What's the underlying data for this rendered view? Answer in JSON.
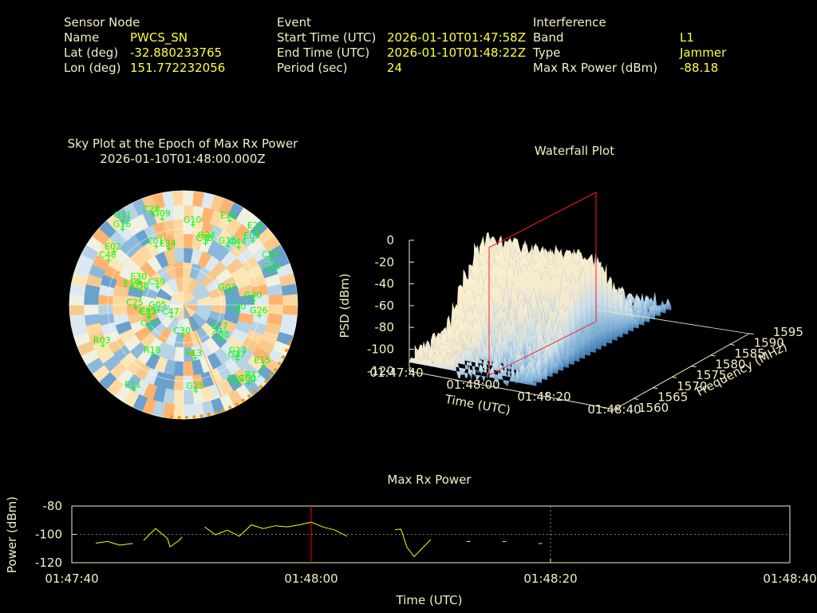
{
  "header": {
    "sensor": {
      "heading": "Sensor Node",
      "name_label": "Name",
      "name": "PWCS_SN",
      "lat_label": "Lat (deg)",
      "lat": "-32.880233765",
      "lon_label": "Lon (deg)",
      "lon": "151.772232056"
    },
    "event": {
      "heading": "Event",
      "start_label": "Start Time (UTC)",
      "start": "2026-01-10T01:47:58Z",
      "end_label": "End Time (UTC)",
      "end": "2026-01-10T01:48:22Z",
      "period_label": "Period (sec)",
      "period": "24"
    },
    "interference": {
      "heading": "Interference",
      "band_label": "Band",
      "band": "L1",
      "type_label": "Type",
      "type": "Jammer",
      "power_label": "Max Rx Power (dBm)",
      "power": "-88.18"
    }
  },
  "chart_data": [
    {
      "type": "scatter",
      "name": "sky",
      "title": "Sky Plot at the Epoch of Max Rx Power",
      "subtitle": "2026-01-10T01:48:00.000Z",
      "satellites": [
        "C30",
        "E30",
        "C47",
        "E03",
        "E24",
        "G18",
        "G16",
        "C59",
        "C60",
        "C29",
        "C38",
        "E19",
        "G29",
        "E09",
        "G05",
        "G26",
        "E20",
        "C01",
        "C46",
        "G09",
        "G30",
        "E27",
        "C35",
        "G10",
        "C48",
        "E13",
        "C20",
        "E11",
        "G03",
        "C44",
        "R18",
        "R17",
        "E15",
        "G24",
        "E34",
        "G13",
        "C08",
        "E02",
        "C25",
        "G25",
        "E05",
        "C28",
        "C37",
        "G27",
        "G31",
        "R03"
      ],
      "series_colors": {
        "satellite": "#00ff00",
        "obstruction": "#ff9900",
        "marker": "#ff0000"
      }
    },
    {
      "type": "area",
      "name": "waterfall",
      "title": "Waterfall Plot",
      "xlabel": "Time (UTC)",
      "ylabel": "Frequency (MHz)",
      "zlabel": "PSD (dBm)",
      "x_ticks": [
        "01:47:40",
        "01:48:00",
        "01:48:20",
        "01:48:40"
      ],
      "y_ticks": [
        "1560",
        "1565",
        "1570",
        "1575",
        "1580",
        "1585",
        "1590",
        "1595"
      ],
      "z_ticks": [
        "0",
        "-20",
        "-40",
        "-60",
        "-80",
        "-100",
        "-120"
      ],
      "zlim": [
        -120,
        0
      ],
      "ylim": [
        1560,
        1595
      ],
      "marker_time": "01:48:00"
    },
    {
      "type": "line",
      "name": "maxpower",
      "title": "Max Rx Power",
      "xlabel": "Time (UTC)",
      "ylabel": "Power (dBm)",
      "x_ticks": [
        "01:47:40",
        "01:48:00",
        "01:48:20",
        "01:48:40"
      ],
      "y_ticks": [
        "-80",
        "-100",
        "-120"
      ],
      "xlim_s": [
        0,
        60
      ],
      "ylim": [
        -120,
        -80
      ],
      "marker_s": 20,
      "series": [
        {
          "values": [
            [
              2.0,
              -106.2
            ],
            [
              3.0,
              -105.0
            ],
            [
              4.0,
              -107.6
            ],
            [
              5.1,
              -106.4
            ]
          ]
        },
        {
          "values": [
            [
              6.0,
              -104.2
            ],
            [
              7.0,
              -95.9
            ],
            [
              8.0,
              -103.0
            ],
            [
              8.2,
              -108.8
            ],
            [
              9.0,
              -104.0
            ],
            [
              9.2,
              -101.8
            ]
          ]
        },
        {
          "values": [
            [
              11.1,
              -94.7
            ],
            [
              12.0,
              -100.3
            ],
            [
              13.0,
              -97.0
            ],
            [
              14.0,
              -101.3
            ],
            [
              15.0,
              -93.3
            ],
            [
              16.0,
              -95.9
            ],
            [
              17.0,
              -93.9
            ],
            [
              18.0,
              -94.7
            ],
            [
              19.0,
              -93.3
            ],
            [
              20.0,
              -91.4
            ],
            [
              21.0,
              -94.8
            ],
            [
              22.0,
              -97.0
            ],
            [
              23.0,
              -101.3
            ]
          ]
        },
        {
          "values": [
            [
              27.0,
              -96.7
            ],
            [
              27.5,
              -96.3
            ],
            [
              28.0,
              -109.0
            ],
            [
              28.6,
              -115.7
            ],
            [
              30.0,
              -103.6
            ]
          ]
        },
        {
          "values": [
            [
              33.0,
              -105.0
            ],
            [
              33.3,
              -105.0
            ]
          ]
        },
        {
          "values": [
            [
              36.0,
              -105.0
            ],
            [
              36.3,
              -105.0
            ]
          ]
        },
        {
          "values": [
            [
              39.0,
              -106.5
            ],
            [
              39.3,
              -106.5
            ]
          ]
        }
      ],
      "line_color": "#ffff00",
      "marker_color": "#ff0000"
    }
  ]
}
